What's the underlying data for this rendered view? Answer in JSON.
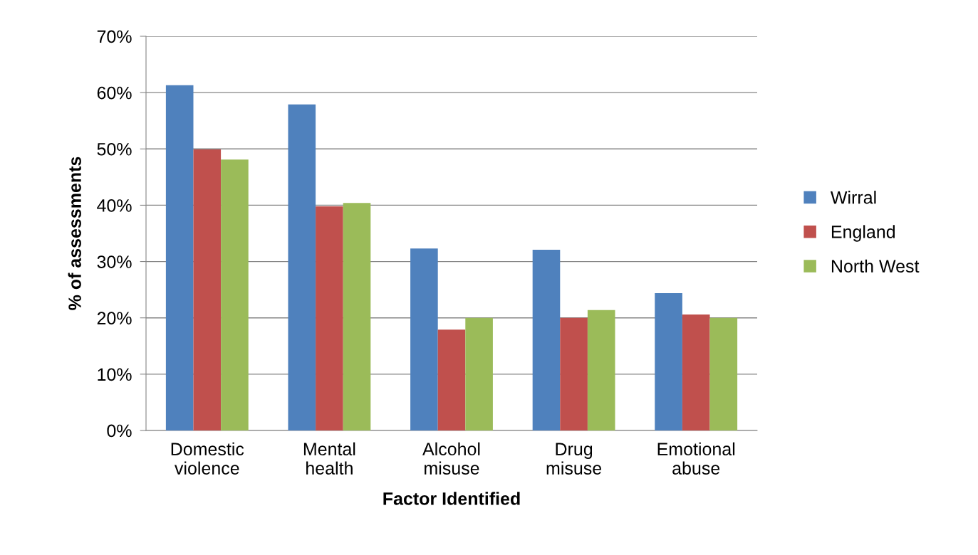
{
  "chart_data": {
    "type": "bar",
    "xlabel": "Factor Identified",
    "ylabel": "% of assessments",
    "categories": [
      "Domestic\nviolence",
      "Mental\nhealth",
      "Alcohol\nmisuse",
      "Drug\nmisuse",
      "Emotional\nabuse"
    ],
    "series": [
      {
        "name": "Wirral",
        "color": "#4f81bd",
        "values": [
          61.3,
          57.9,
          32.3,
          32.1,
          24.4
        ]
      },
      {
        "name": "England",
        "color": "#c0504d",
        "values": [
          49.9,
          39.8,
          17.9,
          20.0,
          20.6
        ]
      },
      {
        "name": "North West",
        "color": "#9bbb59",
        "values": [
          48.1,
          40.4,
          20.0,
          21.4,
          20.0
        ]
      }
    ],
    "ylim": [
      0,
      70
    ],
    "yticks": [
      {
        "value": 0,
        "label": "0%"
      },
      {
        "value": 10,
        "label": "10%"
      },
      {
        "value": 20,
        "label": "20%"
      },
      {
        "value": 30,
        "label": "30%"
      },
      {
        "value": 40,
        "label": "40%"
      },
      {
        "value": 50,
        "label": "50%"
      },
      {
        "value": 60,
        "label": "60%"
      },
      {
        "value": 70,
        "label": "70%"
      }
    ],
    "grid": "y",
    "legend": "right"
  }
}
